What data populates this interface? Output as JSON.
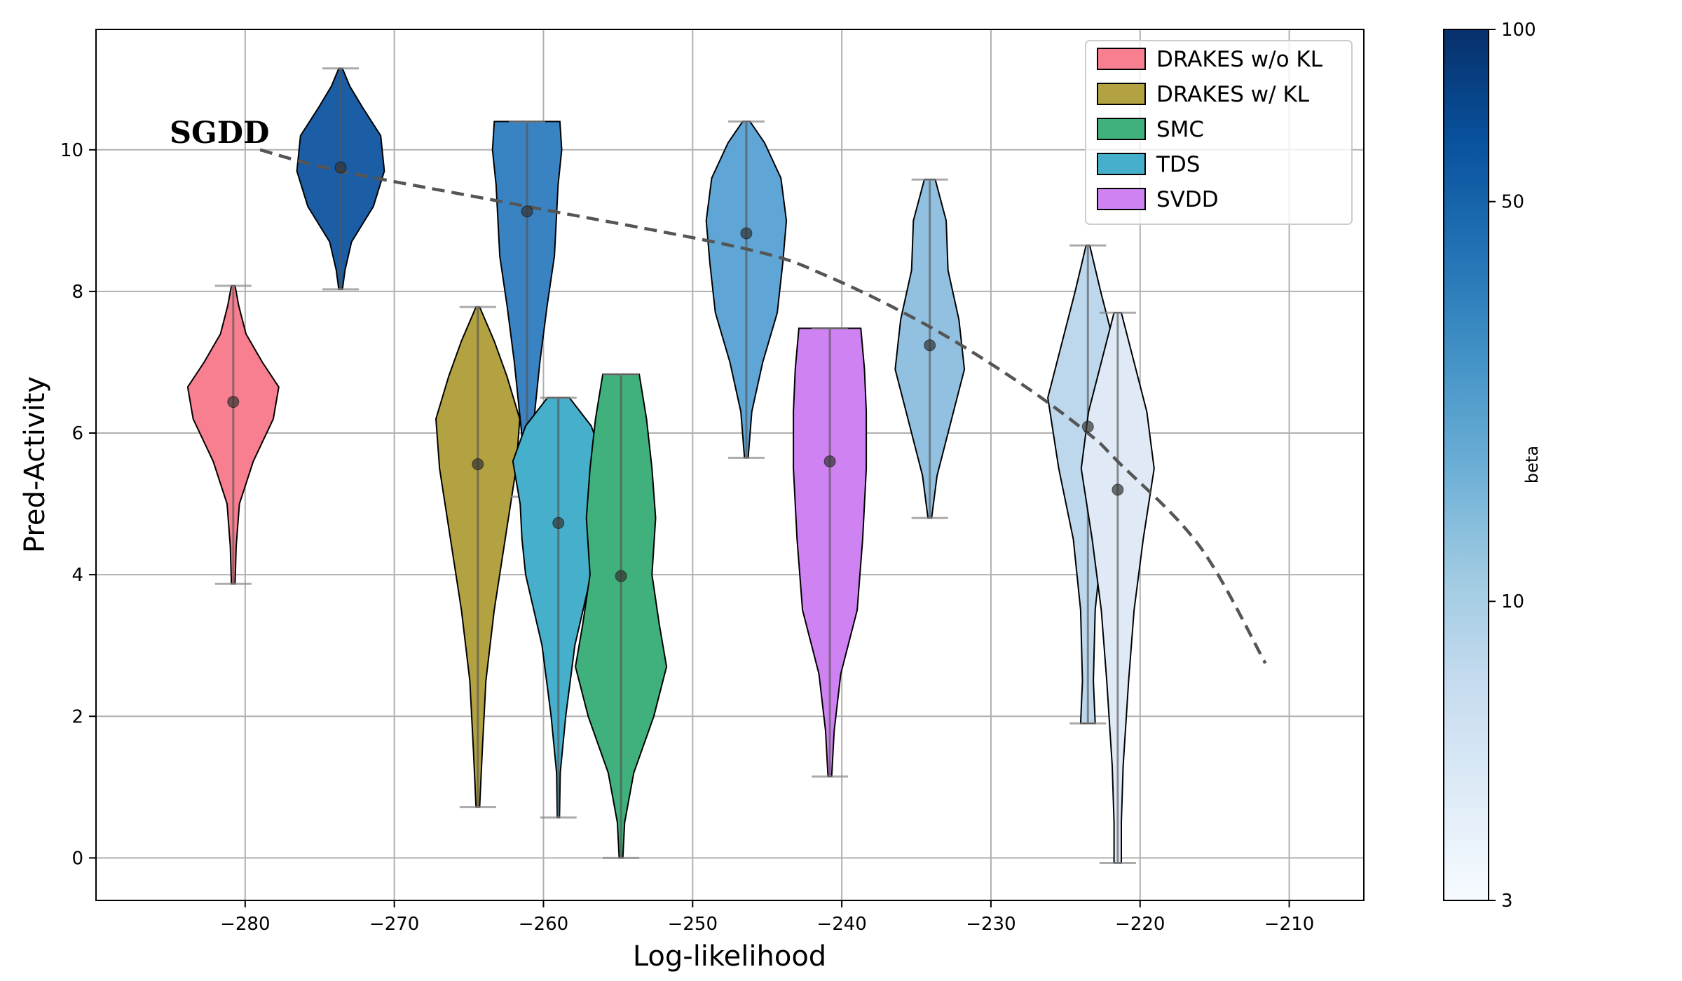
{
  "chart_data": {
    "type": "violin",
    "title": "",
    "xlabel": "Log-likelihood",
    "ylabel": "Pred-Activity",
    "xlim": [
      -290,
      -205
    ],
    "ylim": [
      -0.6,
      11.7
    ],
    "xticks": [
      -280,
      -270,
      -260,
      -250,
      -240,
      -230,
      -220,
      -210
    ],
    "xtick_labels": [
      "−280",
      "−270",
      "−260",
      "−250",
      "−240",
      "−230",
      "−220",
      "−210"
    ],
    "yticks": [
      0,
      2,
      4,
      6,
      8,
      10
    ],
    "ytick_labels": [
      "0",
      "2",
      "4",
      "6",
      "8",
      "10"
    ],
    "grid": true,
    "legend_position": "top-right",
    "legend": [
      {
        "label": "DRAKES w/o KL",
        "color": "#f77f8f"
      },
      {
        "label": "DRAKES w/ KL",
        "color": "#b2a241"
      },
      {
        "label": "SMC",
        "color": "#40b07c"
      },
      {
        "label": "TDS",
        "color": "#46afcb"
      },
      {
        "label": "SVDD",
        "color": "#cf82f2"
      }
    ],
    "annotation": "SGDD",
    "violins": [
      {
        "name": "DRAKES w/o KL",
        "x": -280.8,
        "min": 3.87,
        "max": 8.08,
        "mean": 6.44,
        "color": "#f77f8f",
        "profile": [
          [
            3.87,
            0.05
          ],
          [
            4.4,
            0.08
          ],
          [
            5.0,
            0.17
          ],
          [
            5.6,
            0.55
          ],
          [
            6.2,
            1.1
          ],
          [
            6.65,
            1.25
          ],
          [
            7.0,
            0.8
          ],
          [
            7.4,
            0.35
          ],
          [
            7.8,
            0.15
          ],
          [
            8.08,
            0.05
          ]
        ]
      },
      {
        "name": "SGDD beta~60",
        "x": -273.6,
        "min": 8.03,
        "max": 11.15,
        "mean": 9.75,
        "color": "#1b5ea6",
        "profile": [
          [
            8.03,
            0.05
          ],
          [
            8.3,
            0.12
          ],
          [
            8.7,
            0.3
          ],
          [
            9.2,
            0.9
          ],
          [
            9.7,
            1.2
          ],
          [
            10.2,
            1.1
          ],
          [
            10.6,
            0.6
          ],
          [
            10.9,
            0.25
          ],
          [
            11.15,
            0.05
          ]
        ]
      },
      {
        "name": "DRAKES w/ KL",
        "x": -264.4,
        "min": 0.72,
        "max": 7.78,
        "mean": 5.56,
        "color": "#b2a241",
        "profile": [
          [
            0.72,
            0.05
          ],
          [
            1.5,
            0.12
          ],
          [
            2.5,
            0.22
          ],
          [
            3.5,
            0.45
          ],
          [
            4.5,
            0.75
          ],
          [
            5.5,
            1.05
          ],
          [
            6.2,
            1.15
          ],
          [
            6.8,
            0.8
          ],
          [
            7.3,
            0.45
          ],
          [
            7.78,
            0.05
          ]
        ]
      },
      {
        "name": "SGDD beta~35",
        "x": -261.1,
        "min": 5.1,
        "max": 10.4,
        "mean": 9.13,
        "color": "#3a83c2",
        "profile": [
          [
            5.1,
            0.05
          ],
          [
            6.0,
            0.15
          ],
          [
            7.0,
            0.35
          ],
          [
            7.8,
            0.55
          ],
          [
            8.5,
            0.75
          ],
          [
            9.0,
            0.8
          ],
          [
            9.5,
            0.85
          ],
          [
            10.0,
            0.95
          ],
          [
            10.4,
            0.9
          ]
        ]
      },
      {
        "name": "TDS",
        "x": -259.0,
        "min": 0.57,
        "max": 6.5,
        "mean": 4.73,
        "color": "#46afcb",
        "profile": [
          [
            0.57,
            0.03
          ],
          [
            1.2,
            0.05
          ],
          [
            2.0,
            0.2
          ],
          [
            3.0,
            0.45
          ],
          [
            4.0,
            0.9
          ],
          [
            4.5,
            1.0
          ],
          [
            5.0,
            1.05
          ],
          [
            5.6,
            1.25
          ],
          [
            6.1,
            0.9
          ],
          [
            6.5,
            0.3
          ]
        ]
      },
      {
        "name": "SMC",
        "x": -254.8,
        "min": 0.0,
        "max": 6.83,
        "mean": 3.98,
        "color": "#40b07c",
        "profile": [
          [
            0.0,
            0.05
          ],
          [
            0.5,
            0.1
          ],
          [
            1.2,
            0.35
          ],
          [
            2.0,
            0.9
          ],
          [
            2.7,
            1.25
          ],
          [
            3.3,
            1.05
          ],
          [
            4.0,
            0.85
          ],
          [
            4.8,
            0.95
          ],
          [
            5.5,
            0.85
          ],
          [
            6.2,
            0.7
          ],
          [
            6.83,
            0.5
          ]
        ]
      },
      {
        "name": "SGDD beta~25",
        "x": -246.4,
        "min": 5.65,
        "max": 10.4,
        "mean": 8.82,
        "color": "#5fa5d6",
        "profile": [
          [
            5.65,
            0.05
          ],
          [
            6.3,
            0.15
          ],
          [
            7.0,
            0.45
          ],
          [
            7.7,
            0.85
          ],
          [
            8.4,
            1.0
          ],
          [
            9.0,
            1.1
          ],
          [
            9.6,
            0.95
          ],
          [
            10.1,
            0.5
          ],
          [
            10.4,
            0.1
          ]
        ]
      },
      {
        "name": "SVDD",
        "x": -240.8,
        "min": 1.15,
        "max": 7.48,
        "mean": 5.6,
        "color": "#cf82f2",
        "profile": [
          [
            1.15,
            0.05
          ],
          [
            1.8,
            0.12
          ],
          [
            2.6,
            0.3
          ],
          [
            3.5,
            0.75
          ],
          [
            4.5,
            0.9
          ],
          [
            5.5,
            1.0
          ],
          [
            6.3,
            1.0
          ],
          [
            6.9,
            0.95
          ],
          [
            7.48,
            0.85
          ]
        ]
      },
      {
        "name": "SGDD beta~15",
        "x": -234.1,
        "min": 4.8,
        "max": 9.58,
        "mean": 7.24,
        "color": "#92c0e0",
        "profile": [
          [
            4.8,
            0.05
          ],
          [
            5.4,
            0.2
          ],
          [
            6.2,
            0.6
          ],
          [
            6.9,
            0.95
          ],
          [
            7.6,
            0.8
          ],
          [
            8.3,
            0.5
          ],
          [
            9.0,
            0.45
          ],
          [
            9.58,
            0.15
          ]
        ]
      },
      {
        "name": "SGDD beta~8",
        "x": -223.5,
        "min": 1.9,
        "max": 8.65,
        "mean": 6.09,
        "color": "#bdd7ed",
        "profile": [
          [
            1.9,
            0.2
          ],
          [
            2.5,
            0.15
          ],
          [
            3.5,
            0.2
          ],
          [
            4.5,
            0.4
          ],
          [
            5.5,
            0.8
          ],
          [
            6.5,
            1.1
          ],
          [
            7.2,
            0.75
          ],
          [
            8.0,
            0.35
          ],
          [
            8.65,
            0.05
          ]
        ]
      },
      {
        "name": "SGDD beta~4",
        "x": -221.5,
        "min": -0.07,
        "max": 7.7,
        "mean": 5.2,
        "color": "#dfeaf6",
        "profile": [
          [
            -0.07,
            0.1
          ],
          [
            0.5,
            0.1
          ],
          [
            1.3,
            0.15
          ],
          [
            2.5,
            0.3
          ],
          [
            3.5,
            0.45
          ],
          [
            4.5,
            0.7
          ],
          [
            5.5,
            1.0
          ],
          [
            6.3,
            0.8
          ],
          [
            7.0,
            0.45
          ],
          [
            7.7,
            0.1
          ]
        ]
      }
    ],
    "trend_line": {
      "style": "dashed",
      "color": "#555555",
      "x": [
        -279,
        -273.6,
        -261.1,
        -246.4,
        -240.8,
        -234.1,
        -228,
        -223.5,
        -221.5,
        -216,
        -211.6
      ],
      "y": [
        10.0,
        9.7,
        9.2,
        8.6,
        8.2,
        7.5,
        6.7,
        6.0,
        5.6,
        4.4,
        2.75
      ]
    },
    "colorbar": {
      "label": "beta",
      "scale": "log",
      "min": 3,
      "max": 100,
      "ticks": [
        3,
        10,
        50,
        100
      ],
      "tick_labels": [
        "3",
        "10",
        "50",
        "100"
      ],
      "colors": [
        "#f7fbff",
        "#deebf7",
        "#c6dbef",
        "#9ecae1",
        "#6baed6",
        "#4292c6",
        "#2171b5",
        "#08519c",
        "#08306b"
      ]
    }
  }
}
